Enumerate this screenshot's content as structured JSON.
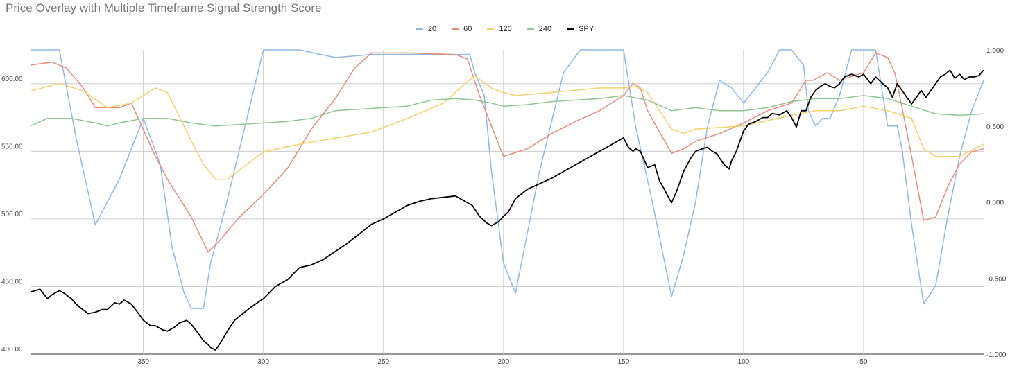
{
  "chart_data": {
    "type": "line",
    "title": "Price Overlay with Multiple Timeframe Signal Strength Score",
    "xlabel": "",
    "ylabel_left": "",
    "ylabel_right": "",
    "x_reversed": true,
    "xlim": [
      397,
      0
    ],
    "x_ticks": [
      "350",
      "300",
      "250",
      "200",
      "150",
      "100",
      "50"
    ],
    "x_tick_values": [
      350,
      300,
      250,
      200,
      150,
      100,
      50
    ],
    "y_left_lim": [
      400,
      625
    ],
    "y_left_ticks": [
      "400.00",
      "450.00",
      "500.00",
      "550.00",
      "600.00"
    ],
    "y_left_tick_values": [
      400,
      450,
      500,
      550,
      600
    ],
    "y_right_lim": [
      -1,
      1
    ],
    "y_right_ticks": [
      "-1.000",
      "-0.500",
      "0.000",
      "0.500",
      "1.000"
    ],
    "y_right_tick_values": [
      -1,
      -0.5,
      0,
      0.5,
      1
    ],
    "grid": true,
    "legend_position": "top",
    "series": [
      {
        "name": "20",
        "axis": "right",
        "color": "#8fb8e2",
        "x": [
          397,
          385,
          378,
          370,
          360,
          350,
          343,
          338,
          333,
          330,
          325,
          322,
          316,
          300,
          285,
          270,
          255,
          240,
          222,
          214,
          212,
          208,
          205,
          200,
          195,
          185,
          175,
          168,
          158,
          150,
          145,
          138,
          130,
          125,
          120,
          115,
          110,
          105,
          100,
          95,
          90,
          85,
          80,
          75,
          73,
          70,
          67,
          64,
          60,
          55,
          50,
          45,
          40,
          36,
          34,
          30,
          25,
          20,
          15,
          10,
          5,
          0
        ],
        "values": [
          1.0,
          1.0,
          0.42,
          -0.15,
          0.15,
          0.55,
          0.25,
          -0.3,
          -0.6,
          -0.7,
          -0.7,
          -0.4,
          -0.05,
          1.0,
          1.0,
          0.95,
          0.97,
          0.97,
          0.97,
          0.97,
          0.85,
          0.7,
          0.2,
          -0.4,
          -0.6,
          0.2,
          0.85,
          1.0,
          1.0,
          1.0,
          0.5,
          0.0,
          -0.62,
          -0.35,
          0.0,
          0.5,
          0.8,
          0.75,
          0.65,
          0.75,
          0.85,
          1.0,
          1.0,
          0.9,
          0.6,
          0.5,
          0.55,
          0.55,
          0.7,
          1.0,
          1.0,
          1.0,
          0.5,
          0.5,
          0.35,
          -0.15,
          -0.67,
          -0.55,
          -0.1,
          0.3,
          0.6,
          0.8
        ]
      },
      {
        "name": "60",
        "axis": "right",
        "color": "#e58c7d",
        "x": [
          397,
          388,
          382,
          375,
          370,
          360,
          355,
          345,
          340,
          330,
          323,
          318,
          310,
          300,
          290,
          280,
          270,
          262,
          255,
          240,
          220,
          215,
          210,
          205,
          200,
          190,
          180,
          170,
          160,
          150,
          146,
          143,
          140,
          130,
          125,
          120,
          110,
          100,
          90,
          80,
          74,
          71,
          65,
          60,
          50,
          45,
          40,
          37,
          35,
          30,
          25,
          20,
          15,
          10,
          5,
          0
        ],
        "values": [
          0.9,
          0.92,
          0.88,
          0.75,
          0.62,
          0.62,
          0.65,
          0.3,
          0.15,
          -0.1,
          -0.33,
          -0.25,
          -0.1,
          0.05,
          0.22,
          0.48,
          0.68,
          0.88,
          0.98,
          0.98,
          0.97,
          0.94,
          0.7,
          0.5,
          0.3,
          0.35,
          0.45,
          0.53,
          0.6,
          0.7,
          0.78,
          0.75,
          0.6,
          0.32,
          0.35,
          0.4,
          0.45,
          0.52,
          0.6,
          0.65,
          0.8,
          0.8,
          0.85,
          0.8,
          0.85,
          0.98,
          0.95,
          0.85,
          0.7,
          0.3,
          -0.12,
          -0.1,
          0.1,
          0.25,
          0.33,
          0.35
        ]
      },
      {
        "name": "120",
        "axis": "right",
        "color": "#f3d26c",
        "x": [
          397,
          385,
          375,
          365,
          355,
          345,
          340,
          330,
          325,
          320,
          315,
          300,
          285,
          270,
          255,
          240,
          225,
          218,
          212,
          205,
          200,
          195,
          180,
          160,
          150,
          145,
          140,
          130,
          125,
          120,
          100,
          80,
          70,
          60,
          50,
          40,
          30,
          25,
          20,
          10,
          0
        ],
        "values": [
          0.73,
          0.78,
          0.73,
          0.62,
          0.65,
          0.75,
          0.72,
          0.4,
          0.25,
          0.15,
          0.15,
          0.33,
          0.38,
          0.42,
          0.46,
          0.55,
          0.65,
          0.75,
          0.83,
          0.75,
          0.72,
          0.7,
          0.72,
          0.75,
          0.75,
          0.76,
          0.72,
          0.48,
          0.45,
          0.48,
          0.5,
          0.57,
          0.6,
          0.6,
          0.63,
          0.6,
          0.55,
          0.35,
          0.3,
          0.3,
          0.38
        ]
      },
      {
        "name": "240",
        "axis": "right",
        "color": "#8fc593",
        "x": [
          397,
          390,
          380,
          370,
          365,
          360,
          350,
          340,
          330,
          320,
          310,
          300,
          290,
          280,
          270,
          260,
          250,
          240,
          230,
          220,
          212,
          205,
          200,
          190,
          180,
          170,
          160,
          150,
          140,
          130,
          120,
          110,
          100,
          90,
          80,
          70,
          60,
          50,
          40,
          30,
          20,
          10,
          0
        ],
        "values": [
          0.5,
          0.55,
          0.55,
          0.52,
          0.5,
          0.52,
          0.55,
          0.55,
          0.52,
          0.5,
          0.51,
          0.52,
          0.53,
          0.55,
          0.6,
          0.61,
          0.62,
          0.63,
          0.67,
          0.68,
          0.67,
          0.65,
          0.63,
          0.64,
          0.66,
          0.67,
          0.68,
          0.7,
          0.67,
          0.6,
          0.62,
          0.6,
          0.6,
          0.62,
          0.66,
          0.68,
          0.68,
          0.7,
          0.68,
          0.63,
          0.58,
          0.57,
          0.58
        ]
      },
      {
        "name": "SPY",
        "axis": "left",
        "color": "#000000",
        "x": [
          397,
          393,
          390,
          388,
          385,
          383,
          380,
          378,
          376,
          373,
          370,
          367,
          365,
          362,
          360,
          358,
          355,
          352,
          350,
          347,
          345,
          342,
          340,
          337,
          335,
          332,
          330,
          327,
          325,
          323,
          322,
          320,
          318,
          315,
          312,
          310,
          305,
          300,
          295,
          290,
          285,
          280,
          275,
          270,
          265,
          260,
          255,
          250,
          245,
          240,
          235,
          230,
          225,
          220,
          215,
          213,
          210,
          207,
          205,
          202,
          200,
          198,
          195,
          190,
          185,
          180,
          175,
          170,
          165,
          160,
          155,
          150,
          148,
          146,
          145,
          143,
          140,
          137,
          135,
          133,
          131,
          130,
          128,
          125,
          122,
          120,
          117,
          115,
          113,
          111,
          110,
          108,
          106,
          105,
          103,
          100,
          98,
          95,
          92,
          90,
          88,
          85,
          82,
          80,
          78,
          76,
          74,
          72,
          70,
          68,
          66,
          64,
          62,
          60,
          58,
          55,
          52,
          50,
          47,
          45,
          42,
          40,
          38,
          36,
          34,
          32,
          30,
          28,
          26,
          24,
          22,
          20,
          18,
          16,
          14,
          12,
          10,
          8,
          6,
          4,
          2,
          0
        ],
        "values": [
          446,
          448,
          441,
          444,
          447,
          445,
          441,
          437,
          434,
          430,
          431,
          433,
          433,
          438,
          437,
          440,
          437,
          430,
          425,
          421,
          421,
          418,
          417,
          420,
          423,
          425,
          422,
          415,
          410,
          407,
          405,
          403,
          408,
          417,
          425,
          428,
          435,
          441,
          450,
          455,
          464,
          466,
          470,
          476,
          482,
          489,
          496,
          500,
          505,
          510,
          513,
          515,
          516,
          517,
          512,
          510,
          502,
          497,
          495,
          498,
          502,
          505,
          515,
          522,
          526,
          530,
          535,
          540,
          545,
          550,
          555,
          560,
          553,
          550,
          552,
          550,
          538,
          540,
          528,
          522,
          515,
          512,
          520,
          535,
          545,
          550,
          552,
          553,
          550,
          548,
          545,
          540,
          537,
          543,
          550,
          565,
          570,
          572,
          575,
          575,
          578,
          577,
          580,
          575,
          568,
          580,
          580,
          590,
          595,
          598,
          600,
          598,
          597,
          600,
          605,
          607,
          605,
          607,
          600,
          605,
          600,
          597,
          590,
          600,
          595,
          590,
          585,
          590,
          595,
          590,
          595,
          600,
          605,
          607,
          610,
          604,
          607,
          603,
          605,
          605,
          606,
          610
        ]
      }
    ]
  }
}
